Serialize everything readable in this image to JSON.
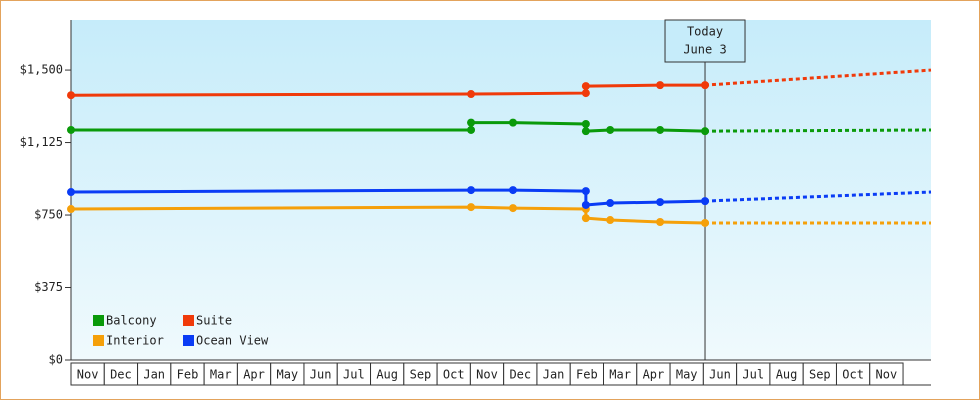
{
  "chart_data": {
    "type": "line",
    "xlim": [
      0,
      25.84
    ],
    "ylim": [
      0,
      1759
    ],
    "yticks": [
      {
        "value": 0,
        "label": "$0"
      },
      {
        "value": 375,
        "label": "$375"
      },
      {
        "value": 750,
        "label": "$750"
      },
      {
        "value": 1125,
        "label": "$1,125"
      },
      {
        "value": 1500,
        "label": "$1,500"
      }
    ],
    "xticks": [
      {
        "value": 0.5,
        "label": "Nov"
      },
      {
        "value": 1.5,
        "label": "Dec"
      },
      {
        "value": 2.5,
        "label": "Jan"
      },
      {
        "value": 3.5,
        "label": "Feb"
      },
      {
        "value": 4.5,
        "label": "Mar"
      },
      {
        "value": 5.5,
        "label": "Apr"
      },
      {
        "value": 6.5,
        "label": "May"
      },
      {
        "value": 7.5,
        "label": "Jun"
      },
      {
        "value": 8.5,
        "label": "Jul"
      },
      {
        "value": 9.5,
        "label": "Aug"
      },
      {
        "value": 10.5,
        "label": "Sep"
      },
      {
        "value": 11.5,
        "label": "Oct"
      },
      {
        "value": 12.5,
        "label": "Nov"
      },
      {
        "value": 13.5,
        "label": "Dec"
      },
      {
        "value": 14.5,
        "label": "Jan"
      },
      {
        "value": 15.5,
        "label": "Feb"
      },
      {
        "value": 16.5,
        "label": "Mar"
      },
      {
        "value": 17.5,
        "label": "Apr"
      },
      {
        "value": 18.5,
        "label": "May"
      },
      {
        "value": 19.5,
        "label": "Jun"
      },
      {
        "value": 20.5,
        "label": "Jul"
      },
      {
        "value": 21.5,
        "label": "Aug"
      },
      {
        "value": 22.5,
        "label": "Sep"
      },
      {
        "value": 23.5,
        "label": "Oct"
      },
      {
        "value": 24.5,
        "label": "Nov"
      }
    ],
    "annotation": {
      "x": 19.05,
      "lines": [
        "Today",
        "June 3"
      ]
    },
    "legend": "lower left",
    "series": [
      {
        "name": "Balcony",
        "color": "#0a9a0a",
        "x": [
          0,
          12.02,
          12.02,
          13.28,
          15.47,
          15.47,
          16.2,
          17.7,
          19.05
        ],
        "values": [
          1190,
          1190,
          1228,
          1228,
          1221,
          1184,
          1190,
          1190,
          1184
        ],
        "forecast_x": [
          19.05,
          25.84
        ],
        "forecast_values": [
          1184,
          1190
        ]
      },
      {
        "name": "Suite",
        "color": "#f03a0a",
        "x": [
          0,
          12.02,
          15.47,
          15.47,
          17.7,
          19.05
        ],
        "values": [
          1370,
          1376,
          1381,
          1417,
          1422,
          1422
        ],
        "forecast_x": [
          19.05,
          25.84
        ],
        "forecast_values": [
          1422,
          1500
        ]
      },
      {
        "name": "Interior",
        "color": "#f5a00a",
        "x": [
          0,
          12.02,
          13.28,
          15.47,
          15.47,
          16.2,
          17.7,
          19.05
        ],
        "values": [
          781,
          791,
          786,
          781,
          734,
          724,
          714,
          709
        ],
        "forecast_x": [
          19.05,
          25.84
        ],
        "forecast_values": [
          709,
          709
        ]
      },
      {
        "name": "Ocean View",
        "color": "#0a3cf5",
        "x": [
          0,
          12.02,
          13.28,
          15.47,
          15.47,
          16.2,
          17.7,
          19.05
        ],
        "values": [
          869,
          879,
          879,
          874,
          802,
          812,
          817,
          822
        ],
        "forecast_x": [
          19.05,
          25.84
        ],
        "forecast_values": [
          822,
          869
        ]
      }
    ]
  }
}
